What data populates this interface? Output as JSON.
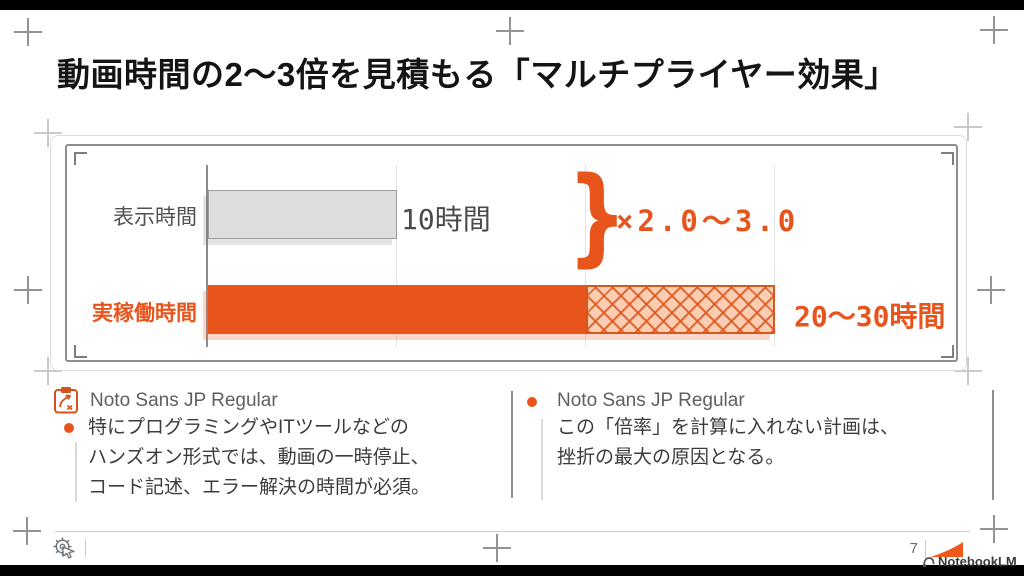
{
  "slide": {
    "title": "動画時間の2〜3倍を見積もる「マルチプライヤー効果」",
    "page_number": "7",
    "brand": "NotebookLM"
  },
  "colors": {
    "accent": "#E8551C",
    "hatch_bg": "#FBCDB2",
    "gray_bar": "#DDDDDD"
  },
  "chart_data": {
    "type": "bar",
    "orientation": "horizontal",
    "categories": [
      "表示時間",
      "実稼働時間"
    ],
    "series": [
      {
        "name": "表示時間",
        "min": 10,
        "max": 10,
        "label": "10時間",
        "style": "solid-gray"
      },
      {
        "name": "実稼働時間",
        "min": 20,
        "max": 30,
        "label": "20〜30時間",
        "style": "solid-orange to 20h, cross-hatched 20h-30h"
      }
    ],
    "x_axis": {
      "min": 0,
      "max": 40,
      "gridline_every": 10,
      "tick_labels": "none"
    },
    "annotation": {
      "brace": "}",
      "multiplier": "×2.0〜3.0"
    },
    "legend": "none"
  },
  "notes": {
    "left": {
      "heading": "Noto Sans JP Regular",
      "lines": [
        "特にプログラミングやITツールなどの",
        "ハンズオン形式では、動画の一時停止、",
        "コード記述、エラー解決の時間が必須。"
      ]
    },
    "right": {
      "heading": "Noto Sans JP Regular",
      "lines": [
        "この「倍率」を計算に入れない計画は、",
        "挫折の最大の原因となる。"
      ]
    }
  }
}
